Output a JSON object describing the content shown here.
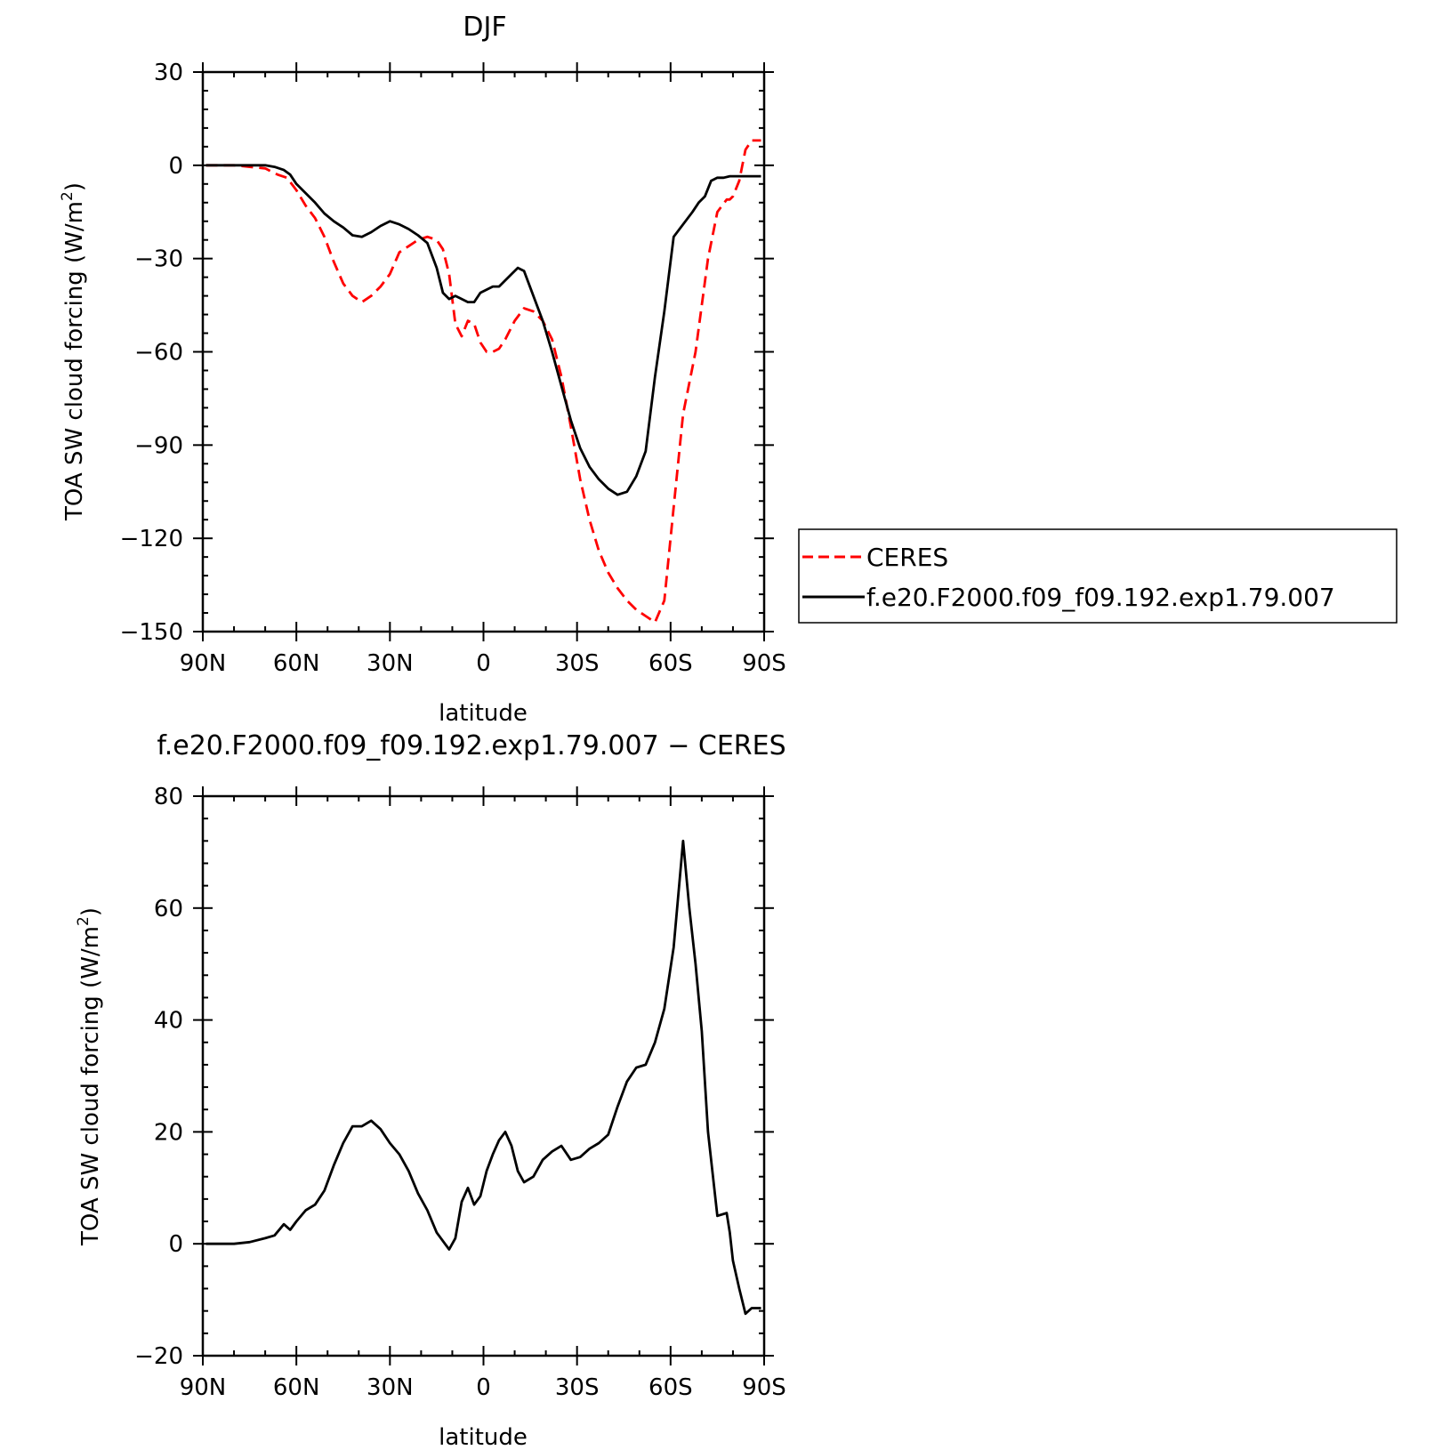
{
  "chart_data": [
    {
      "type": "line",
      "title": "DJF",
      "xlabel": "latitude",
      "ylabel": "TOA SW cloud forcing (W/m",
      "ylabel_sup": "2",
      "ylabel_close": ")",
      "xlim": [
        90,
        -90
      ],
      "ylim": [
        -150,
        30
      ],
      "xticks": [
        {
          "v": 90,
          "label": "90N"
        },
        {
          "v": 60,
          "label": "60N"
        },
        {
          "v": 30,
          "label": "30N"
        },
        {
          "v": 0,
          "label": "0"
        },
        {
          "v": -30,
          "label": "30S"
        },
        {
          "v": -60,
          "label": "60S"
        },
        {
          "v": -90,
          "label": "90S"
        }
      ],
      "yticks": [
        {
          "v": 30,
          "label": "30"
        },
        {
          "v": 0,
          "label": "0"
        },
        {
          "v": -30,
          "label": "−30"
        },
        {
          "v": -60,
          "label": "−60"
        },
        {
          "v": -90,
          "label": "−90"
        },
        {
          "v": -120,
          "label": "−120"
        },
        {
          "v": -150,
          "label": "−150"
        }
      ],
      "grid": false,
      "legend_position": "right",
      "series": [
        {
          "name": "CERES",
          "color": "#ff0000",
          "dash": true,
          "x": [
            89,
            80,
            70,
            66,
            63,
            60,
            57,
            54,
            51,
            48,
            45,
            42,
            39,
            36,
            33,
            30,
            27,
            24,
            21,
            18,
            15,
            13,
            11,
            9,
            7,
            5,
            3,
            1,
            -1,
            -3,
            -5,
            -7,
            -10,
            -13,
            -16,
            -19,
            -22,
            -25,
            -28,
            -31,
            -34,
            -37,
            -40,
            -43,
            -46,
            -49,
            -52,
            -55,
            -58,
            -61,
            -64,
            -66,
            -68,
            -70,
            -72,
            -75,
            -78,
            -79,
            -80,
            -82,
            -84,
            -86,
            -88,
            -89
          ],
          "y": [
            0,
            0,
            -1,
            -3,
            -4,
            -8,
            -13,
            -17,
            -23,
            -31,
            -38,
            -42,
            -44,
            -42,
            -39,
            -35,
            -28,
            -26,
            -24,
            -23,
            -24,
            -27,
            -35,
            -51,
            -55,
            -50,
            -51,
            -57,
            -60,
            -60,
            -59,
            -56,
            -50,
            -46,
            -47,
            -50,
            -56,
            -68,
            -84,
            -101,
            -114,
            -124,
            -131,
            -136,
            -140,
            -143,
            -145,
            -147,
            -140,
            -110,
            -80,
            -70,
            -60,
            -45,
            -30,
            -15,
            -11,
            -11,
            -10,
            -5,
            5,
            8,
            8,
            8
          ]
        },
        {
          "name": "f.e20.F2000.f09_f09.192.exp1.79.007",
          "color": "#000000",
          "dash": false,
          "x": [
            89,
            80,
            75,
            70,
            67,
            64,
            62,
            60,
            57,
            54,
            51,
            48,
            45,
            42,
            39,
            36,
            33,
            30,
            27,
            24,
            21,
            18,
            15,
            13,
            11,
            9,
            7,
            5,
            3,
            1,
            -1,
            -3,
            -5,
            -7,
            -9,
            -11,
            -13,
            -16,
            -19,
            -22,
            -25,
            -28,
            -31,
            -34,
            -37,
            -40,
            -43,
            -46,
            -49,
            -52,
            -55,
            -58,
            -61,
            -64,
            -67,
            -69,
            -71,
            -73,
            -75,
            -77,
            -79,
            -81,
            -84,
            -87,
            -89
          ],
          "y": [
            0,
            0,
            0,
            0,
            -0.5,
            -1.5,
            -3,
            -6,
            -9,
            -12,
            -15.5,
            -18,
            -20,
            -22.5,
            -23,
            -21.5,
            -19.5,
            -18,
            -19,
            -20.5,
            -22.5,
            -25,
            -33,
            -41,
            -43,
            -42,
            -43,
            -44,
            -44,
            -41,
            -40,
            -39,
            -39,
            -37,
            -35,
            -33,
            -34,
            -42,
            -50,
            -60,
            -71,
            -82,
            -91,
            -97,
            -101,
            -104,
            -106,
            -105,
            -100,
            -92,
            -68,
            -47,
            -23,
            -19,
            -15,
            -12,
            -10,
            -5,
            -4,
            -4,
            -3.5,
            -3.5,
            -3.5,
            -3.5,
            -3.5
          ]
        }
      ]
    },
    {
      "type": "line",
      "title": "f.e20.F2000.f09_f09.192.exp1.79.007 − CERES",
      "xlabel": "latitude",
      "ylabel": "TOA SW cloud forcing (W/m",
      "ylabel_sup": "2",
      "ylabel_close": ")",
      "xlim": [
        90,
        -90
      ],
      "ylim": [
        -20,
        80
      ],
      "xticks": [
        {
          "v": 90,
          "label": "90N"
        },
        {
          "v": 60,
          "label": "60N"
        },
        {
          "v": 30,
          "label": "30N"
        },
        {
          "v": 0,
          "label": "0"
        },
        {
          "v": -30,
          "label": "30S"
        },
        {
          "v": -60,
          "label": "60S"
        },
        {
          "v": -90,
          "label": "90S"
        }
      ],
      "yticks": [
        {
          "v": 80,
          "label": "80"
        },
        {
          "v": 60,
          "label": "60"
        },
        {
          "v": 40,
          "label": "40"
        },
        {
          "v": 20,
          "label": "20"
        },
        {
          "v": 0,
          "label": "0"
        },
        {
          "v": -20,
          "label": "−20"
        }
      ],
      "grid": false,
      "series": [
        {
          "color": "#000000",
          "dash": false,
          "x": [
            89,
            80,
            75,
            70,
            67,
            64,
            62,
            60,
            57,
            54,
            51,
            48,
            45,
            42,
            39,
            36,
            33,
            30,
            27,
            24,
            21,
            18,
            15,
            13,
            11,
            9,
            7,
            5,
            3,
            1,
            -1,
            -3,
            -5,
            -7,
            -9,
            -11,
            -13,
            -16,
            -19,
            -22,
            -25,
            -28,
            -31,
            -34,
            -37,
            -40,
            -43,
            -46,
            -49,
            -52,
            -55,
            -58,
            -61,
            -64,
            -66,
            -68,
            -70,
            -72,
            -75,
            -78,
            -79,
            -80,
            -82,
            -84,
            -86,
            -88,
            -89
          ],
          "y": [
            0,
            0,
            0.3,
            1,
            1.5,
            3.5,
            2.5,
            4,
            6,
            7,
            9.5,
            14,
            18,
            21,
            21,
            22,
            20.5,
            18,
            16,
            13,
            9,
            6,
            2,
            0.5,
            -1,
            1,
            7.5,
            10,
            7,
            8.5,
            13,
            16,
            18.5,
            20,
            17.5,
            13,
            11,
            12,
            15,
            16.5,
            17.5,
            15,
            15.5,
            17,
            18,
            19.5,
            24.5,
            29,
            31.5,
            32,
            36,
            42,
            53,
            72,
            60,
            50,
            38,
            20,
            5,
            5.5,
            2,
            -3,
            -8,
            -12.5,
            -11.5,
            -11.5,
            -11.5
          ]
        }
      ]
    }
  ]
}
